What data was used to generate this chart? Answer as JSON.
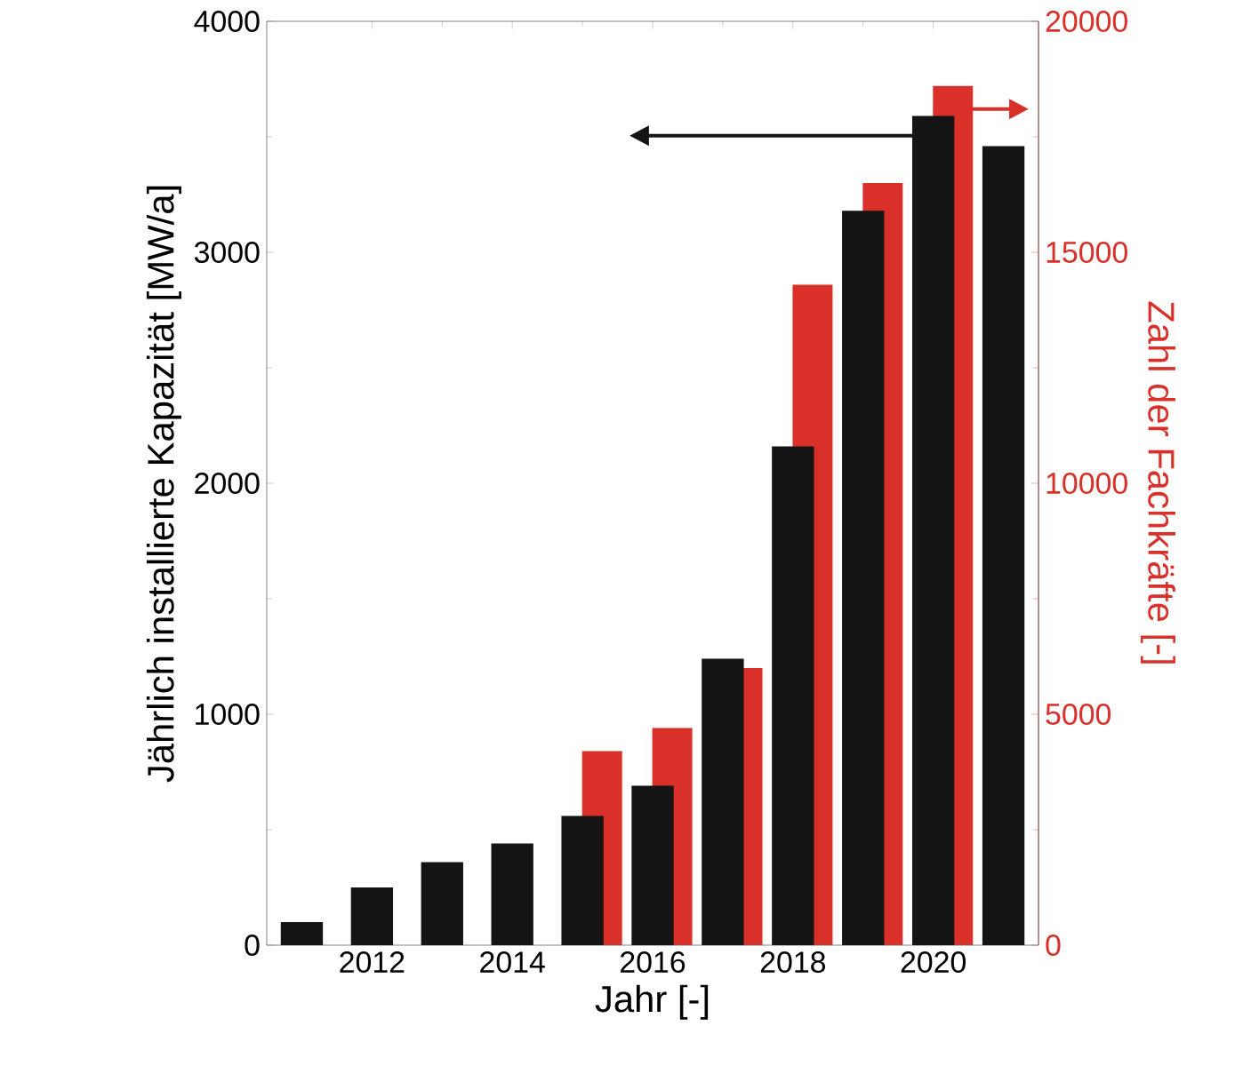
{
  "chart_data": {
    "type": "bar",
    "xlabel": "Jahr [-]",
    "ylabel": "Jährlich installierte Kapazität [MW/a]",
    "y2label": "Zahl der Fachkräfte [-]",
    "x": [
      2011,
      2012,
      2013,
      2014,
      2015,
      2016,
      2017,
      2018,
      2019,
      2020,
      2021
    ],
    "series": [
      {
        "color": "#141414",
        "values": [
          100,
          250,
          360,
          440,
          560,
          690,
          1240,
          2160,
          3180,
          3590,
          3460
        ]
      },
      {
        "color": "#d9302a",
        "axis": "y2",
        "x": [
          2015,
          2016,
          2017,
          2018,
          2019,
          2020
        ],
        "values": [
          4200,
          4700,
          6000,
          14300,
          16500,
          18600
        ]
      }
    ],
    "xlim": [
      2010.5,
      2021.5
    ],
    "xticks": [
      2012,
      2014,
      2016,
      2018,
      2020
    ],
    "ylim": [
      0,
      4000
    ],
    "yticks": [
      0,
      1000,
      2000,
      3000,
      4000
    ],
    "y2lim": [
      0,
      20000
    ],
    "y2ticks": [
      0,
      5000,
      10000,
      15000,
      20000
    ]
  }
}
